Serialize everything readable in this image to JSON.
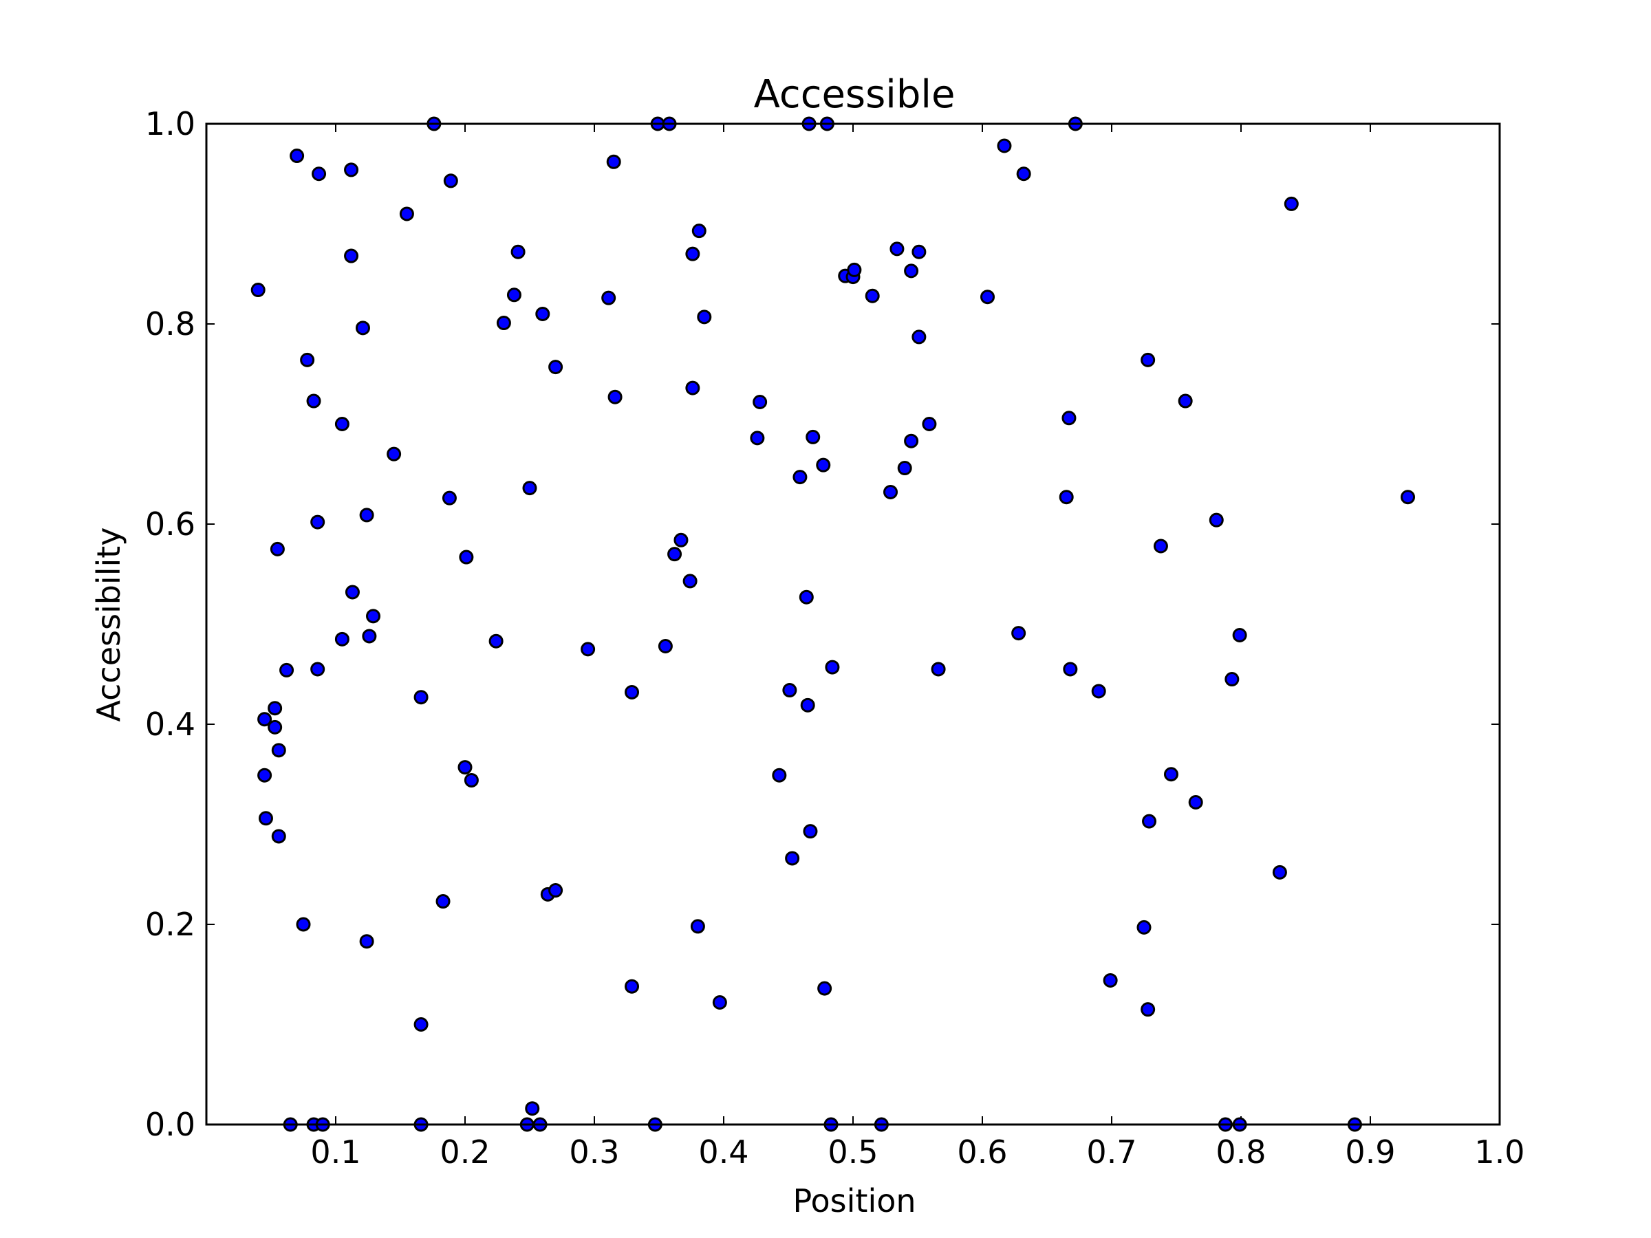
{
  "chart_data": {
    "type": "scatter",
    "title": "Accessible",
    "xlabel": "Position",
    "ylabel": "Accessibility",
    "xlim": [
      0.0,
      1.0
    ],
    "ylim": [
      0.0,
      1.0
    ],
    "xticks": [
      "0.1",
      "0.2",
      "0.3",
      "0.4",
      "0.5",
      "0.6",
      "0.7",
      "0.8",
      "0.9",
      "1.0"
    ],
    "yticks": [
      "0.0",
      "0.2",
      "0.4",
      "0.6",
      "0.8",
      "1.0"
    ],
    "grid": false,
    "marker_color": "#0000ff",
    "marker_edge_color": "#000000",
    "points": [
      [
        0.04,
        0.834
      ],
      [
        0.07,
        0.968
      ],
      [
        0.087,
        0.95
      ],
      [
        0.112,
        0.954
      ],
      [
        0.176,
        1.0
      ],
      [
        0.189,
        0.943
      ],
      [
        0.155,
        0.91
      ],
      [
        0.112,
        0.868
      ],
      [
        0.078,
        0.764
      ],
      [
        0.083,
        0.723
      ],
      [
        0.121,
        0.796
      ],
      [
        0.105,
        0.7
      ],
      [
        0.145,
        0.67
      ],
      [
        0.188,
        0.626
      ],
      [
        0.124,
        0.609
      ],
      [
        0.086,
        0.602
      ],
      [
        0.055,
        0.575
      ],
      [
        0.201,
        0.567
      ],
      [
        0.113,
        0.532
      ],
      [
        0.129,
        0.508
      ],
      [
        0.105,
        0.485
      ],
      [
        0.126,
        0.488
      ],
      [
        0.062,
        0.454
      ],
      [
        0.086,
        0.455
      ],
      [
        0.053,
        0.416
      ],
      [
        0.045,
        0.405
      ],
      [
        0.053,
        0.397
      ],
      [
        0.056,
        0.374
      ],
      [
        0.045,
        0.349
      ],
      [
        0.046,
        0.306
      ],
      [
        0.056,
        0.288
      ],
      [
        0.075,
        0.2
      ],
      [
        0.166,
        0.427
      ],
      [
        0.2,
        0.357
      ],
      [
        0.205,
        0.344
      ],
      [
        0.183,
        0.223
      ],
      [
        0.124,
        0.183
      ],
      [
        0.166,
        0.1
      ],
      [
        0.065,
        0.0
      ],
      [
        0.083,
        0.0
      ],
      [
        0.09,
        0.0
      ],
      [
        0.166,
        0.0
      ],
      [
        0.23,
        0.801
      ],
      [
        0.238,
        0.829
      ],
      [
        0.241,
        0.872
      ],
      [
        0.26,
        0.81
      ],
      [
        0.27,
        0.757
      ],
      [
        0.25,
        0.636
      ],
      [
        0.224,
        0.483
      ],
      [
        0.295,
        0.475
      ],
      [
        0.264,
        0.23
      ],
      [
        0.27,
        0.234
      ],
      [
        0.252,
        0.016
      ],
      [
        0.248,
        0.0
      ],
      [
        0.258,
        0.0
      ],
      [
        0.311,
        0.826
      ],
      [
        0.315,
        0.962
      ],
      [
        0.316,
        0.727
      ],
      [
        0.349,
        1.0
      ],
      [
        0.358,
        1.0
      ],
      [
        0.381,
        0.893
      ],
      [
        0.376,
        0.87
      ],
      [
        0.385,
        0.807
      ],
      [
        0.376,
        0.736
      ],
      [
        0.367,
        0.584
      ],
      [
        0.362,
        0.57
      ],
      [
        0.374,
        0.543
      ],
      [
        0.355,
        0.478
      ],
      [
        0.329,
        0.432
      ],
      [
        0.38,
        0.198
      ],
      [
        0.329,
        0.138
      ],
      [
        0.397,
        0.122
      ],
      [
        0.347,
        0.0
      ],
      [
        0.426,
        0.686
      ],
      [
        0.428,
        0.722
      ],
      [
        0.443,
        0.349
      ],
      [
        0.451,
        0.434
      ],
      [
        0.453,
        0.266
      ],
      [
        0.459,
        0.647
      ],
      [
        0.464,
        0.527
      ],
      [
        0.465,
        0.419
      ],
      [
        0.467,
        0.293
      ],
      [
        0.466,
        1.0
      ],
      [
        0.48,
        1.0
      ],
      [
        0.469,
        0.687
      ],
      [
        0.477,
        0.659
      ],
      [
        0.484,
        0.457
      ],
      [
        0.478,
        0.136
      ],
      [
        0.483,
        0.0
      ],
      [
        0.494,
        0.848
      ],
      [
        0.5,
        0.847
      ],
      [
        0.501,
        0.854
      ],
      [
        0.515,
        0.828
      ],
      [
        0.534,
        0.875
      ],
      [
        0.545,
        0.853
      ],
      [
        0.551,
        0.872
      ],
      [
        0.551,
        0.787
      ],
      [
        0.545,
        0.683
      ],
      [
        0.559,
        0.7
      ],
      [
        0.54,
        0.656
      ],
      [
        0.529,
        0.632
      ],
      [
        0.566,
        0.455
      ],
      [
        0.522,
        0.0
      ],
      [
        0.617,
        0.978
      ],
      [
        0.632,
        0.95
      ],
      [
        0.604,
        0.827
      ],
      [
        0.672,
        1.0
      ],
      [
        0.667,
        0.706
      ],
      [
        0.665,
        0.627
      ],
      [
        0.628,
        0.491
      ],
      [
        0.668,
        0.455
      ],
      [
        0.69,
        0.433
      ],
      [
        0.699,
        0.144
      ],
      [
        0.728,
        0.764
      ],
      [
        0.757,
        0.723
      ],
      [
        0.738,
        0.578
      ],
      [
        0.781,
        0.604
      ],
      [
        0.799,
        0.489
      ],
      [
        0.793,
        0.445
      ],
      [
        0.746,
        0.35
      ],
      [
        0.765,
        0.322
      ],
      [
        0.729,
        0.303
      ],
      [
        0.725,
        0.197
      ],
      [
        0.728,
        0.115
      ],
      [
        0.83,
        0.252
      ],
      [
        0.839,
        0.92
      ],
      [
        0.788,
        0.0
      ],
      [
        0.799,
        0.0
      ],
      [
        0.888,
        0.0
      ],
      [
        0.929,
        0.627
      ]
    ]
  }
}
